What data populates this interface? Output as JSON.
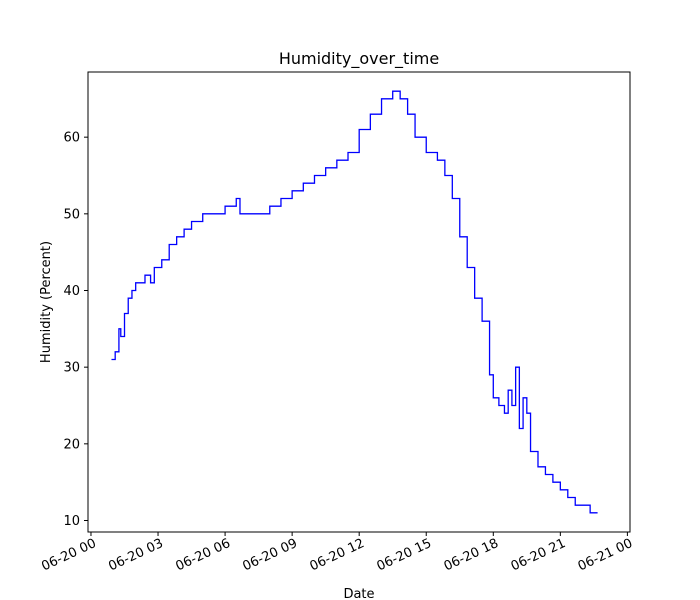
{
  "chart_data": {
    "type": "line",
    "title": "Humidity_over_time",
    "xlabel": "Date",
    "ylabel": "Humidity (Percent)",
    "x_ticks": [
      "2023-06-20T00:00",
      "2023-06-20T03:00",
      "2023-06-20T06:00",
      "2023-06-20T09:00",
      "2023-06-20T12:00",
      "2023-06-20T15:00",
      "2023-06-20T18:00",
      "2023-06-20T21:00",
      "2023-06-21T00:00"
    ],
    "x_tick_labels": [
      "06-20 00",
      "06-20 03",
      "06-20 06",
      "06-20 09",
      "06-20 12",
      "06-20 15",
      "06-20 18",
      "06-20 21",
      "06-21 00"
    ],
    "y_ticks": [
      10,
      20,
      30,
      40,
      50,
      60
    ],
    "xlim": [
      "2023-06-19T23:52",
      "2023-06-21T00:07"
    ],
    "ylim": [
      8.5,
      68.5
    ],
    "grid": false,
    "series": [
      {
        "color": "#0000ff",
        "x": [
          "2023-06-20T00:55",
          "2023-06-20T01:05",
          "2023-06-20T01:15",
          "2023-06-20T01:20",
          "2023-06-20T01:30",
          "2023-06-20T01:40",
          "2023-06-20T01:50",
          "2023-06-20T02:00",
          "2023-06-20T02:15",
          "2023-06-20T02:25",
          "2023-06-20T02:40",
          "2023-06-20T02:50",
          "2023-06-20T03:10",
          "2023-06-20T03:30",
          "2023-06-20T03:50",
          "2023-06-20T04:10",
          "2023-06-20T04:30",
          "2023-06-20T05:00",
          "2023-06-20T05:30",
          "2023-06-20T06:00",
          "2023-06-20T06:30",
          "2023-06-20T06:40",
          "2023-06-20T07:00",
          "2023-06-20T07:30",
          "2023-06-20T08:00",
          "2023-06-20T08:30",
          "2023-06-20T09:00",
          "2023-06-20T09:30",
          "2023-06-20T10:00",
          "2023-06-20T10:30",
          "2023-06-20T11:00",
          "2023-06-20T11:30",
          "2023-06-20T12:00",
          "2023-06-20T12:30",
          "2023-06-20T13:00",
          "2023-06-20T13:30",
          "2023-06-20T13:50",
          "2023-06-20T14:10",
          "2023-06-20T14:30",
          "2023-06-20T15:00",
          "2023-06-20T15:30",
          "2023-06-20T15:50",
          "2023-06-20T16:10",
          "2023-06-20T16:30",
          "2023-06-20T16:50",
          "2023-06-20T17:10",
          "2023-06-20T17:30",
          "2023-06-20T17:50",
          "2023-06-20T18:00",
          "2023-06-20T18:15",
          "2023-06-20T18:30",
          "2023-06-20T18:40",
          "2023-06-20T18:50",
          "2023-06-20T19:00",
          "2023-06-20T19:10",
          "2023-06-20T19:20",
          "2023-06-20T19:30",
          "2023-06-20T19:40",
          "2023-06-20T20:00",
          "2023-06-20T20:20",
          "2023-06-20T20:40",
          "2023-06-20T21:00",
          "2023-06-20T21:20",
          "2023-06-20T21:40",
          "2023-06-20T22:00",
          "2023-06-20T22:20",
          "2023-06-20T22:40"
        ],
        "y": [
          31,
          32,
          35,
          34,
          37,
          39,
          40,
          41,
          41,
          42,
          41,
          43,
          44,
          46,
          47,
          48,
          49,
          50,
          50,
          51,
          52,
          50,
          50,
          50,
          51,
          52,
          53,
          54,
          55,
          56,
          57,
          58,
          61,
          63,
          65,
          66,
          65,
          63,
          60,
          58,
          57,
          55,
          52,
          47,
          43,
          39,
          36,
          29,
          26,
          25,
          24,
          27,
          25,
          30,
          22,
          26,
          24,
          19,
          17,
          16,
          15,
          14,
          13,
          12,
          12,
          11,
          11
        ]
      }
    ]
  }
}
